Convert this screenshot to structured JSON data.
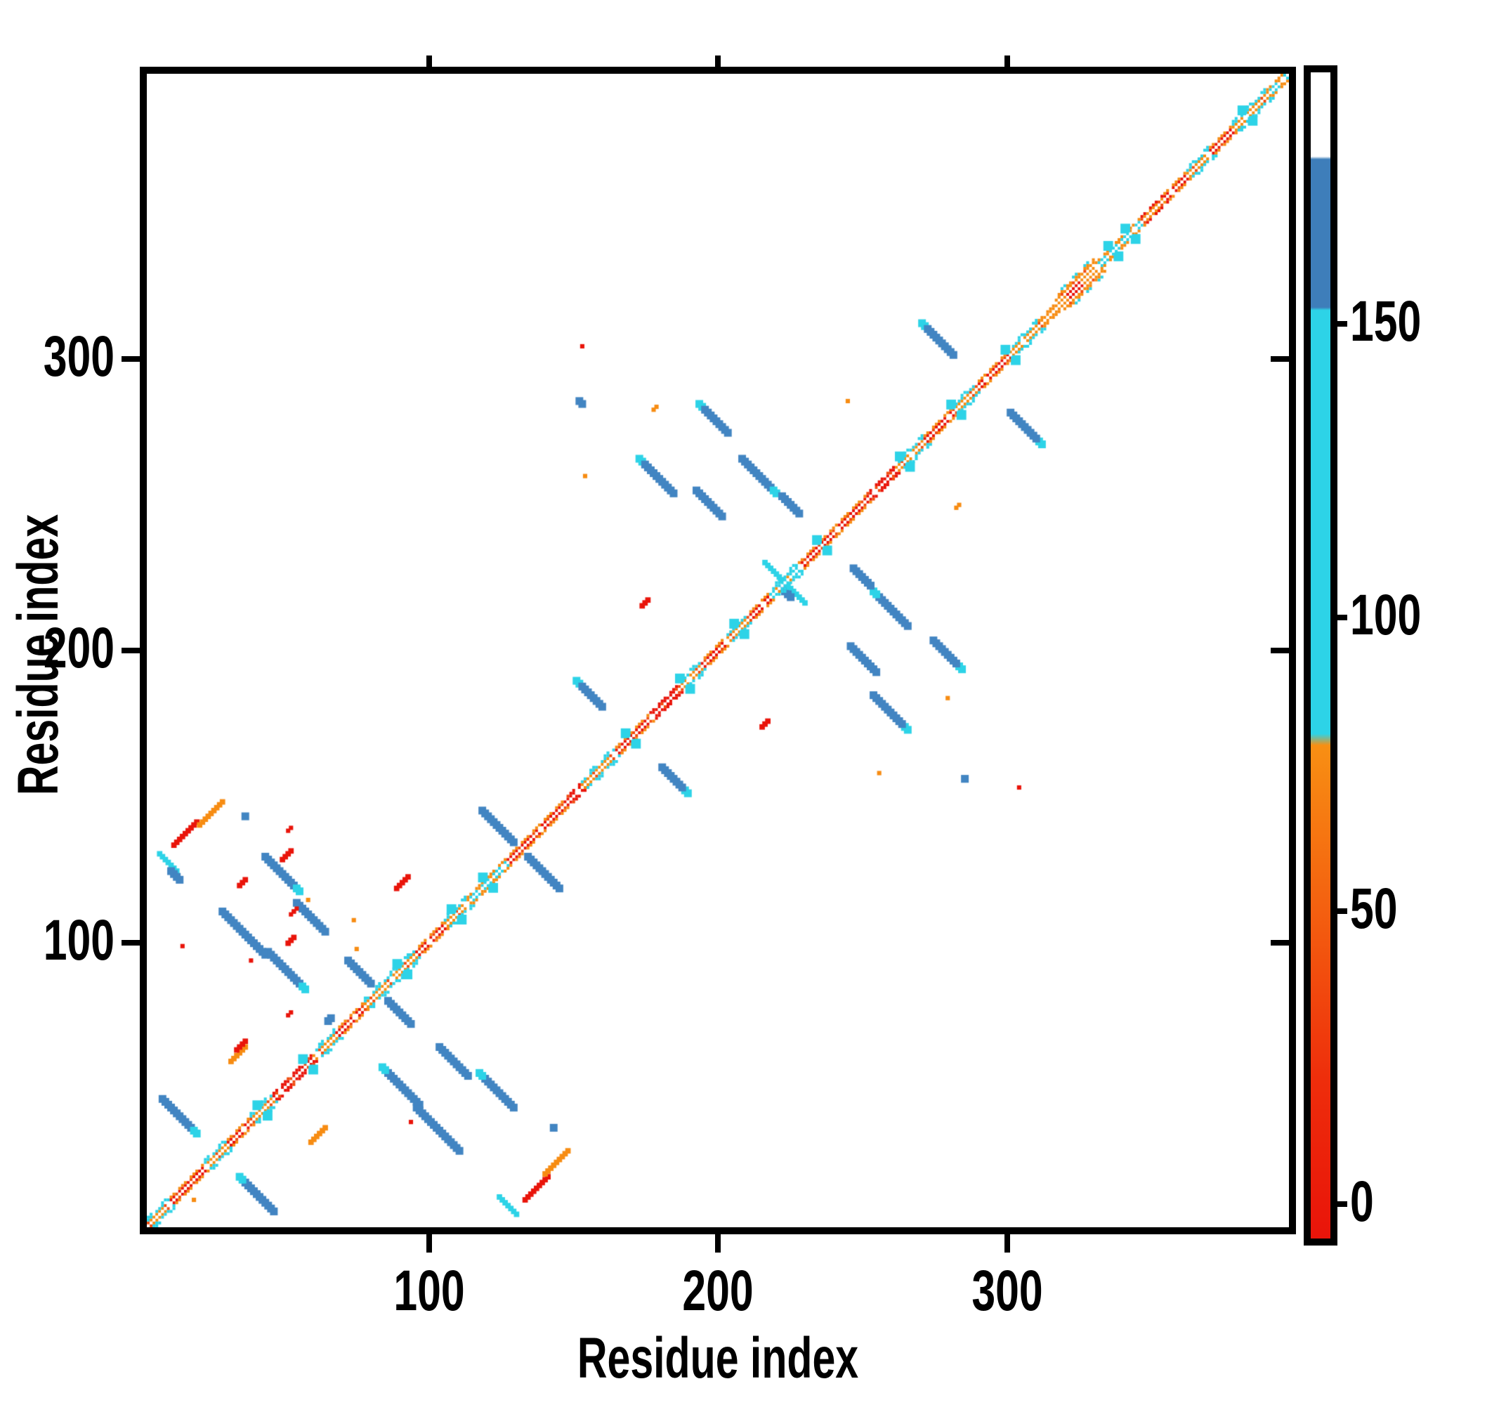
{
  "chart_data": {
    "type": "heatmap",
    "subtype": "protein-contact-map",
    "title": "",
    "xlabel": "Residue index",
    "ylabel": "Residue index",
    "x_ticks": [
      100,
      200,
      300
    ],
    "y_ticks": [
      100,
      200,
      300
    ],
    "xlim": [
      0,
      400
    ],
    "ylim": [
      0,
      400
    ],
    "grid": false,
    "background": "#ffffff",
    "palette": {
      "red": "#e9140a",
      "redOrange": "#f14b0e",
      "orange": "#f78c12",
      "cyan": "#2dd3e7",
      "blue": "#4285c2",
      "barBlue": "#3e7eba",
      "white": "#ffffff",
      "frame": "#000000"
    },
    "colorbar": {
      "ticks": [
        0,
        50,
        100,
        150
      ],
      "range": [
        -7,
        194
      ],
      "stops": [
        {
          "v": -7,
          "c": "#e9140a"
        },
        {
          "v": 20,
          "c": "#ee2d0b"
        },
        {
          "v": 45,
          "c": "#f3580f"
        },
        {
          "v": 78,
          "c": "#f88f13"
        },
        {
          "v": 80,
          "c": "#2dd3e7"
        },
        {
          "v": 153,
          "c": "#2dd3e7"
        },
        {
          "v": 153.5,
          "c": "#3e7eba"
        },
        {
          "v": 179,
          "c": "#3e7eba"
        },
        {
          "v": 179.5,
          "c": "#ffffff"
        },
        {
          "v": 194,
          "c": "#ffffff"
        }
      ]
    },
    "diagonal_segments": [
      [
        0,
        8,
        "orange",
        "cyan"
      ],
      [
        8,
        20,
        "red",
        "orange"
      ],
      [
        20,
        28,
        "orange",
        "cyan"
      ],
      [
        28,
        36,
        "red",
        "orange"
      ],
      [
        36,
        44,
        "orange",
        "cyan"
      ],
      [
        44,
        58,
        "red",
        "red"
      ],
      [
        58,
        66,
        "orange",
        "cyan"
      ],
      [
        66,
        76,
        "red",
        "orange"
      ],
      [
        76,
        86,
        "orange",
        "cyan"
      ],
      [
        86,
        94,
        "orange",
        "cyan"
      ],
      [
        94,
        104,
        "red",
        "orange"
      ],
      [
        104,
        112,
        "orange",
        "cyan"
      ],
      [
        112,
        126,
        "cyan",
        "orange"
      ],
      [
        126,
        146,
        "red",
        "orange"
      ],
      [
        146,
        152,
        "red",
        "red"
      ],
      [
        152,
        164,
        "orange",
        "cyan"
      ],
      [
        164,
        176,
        "red",
        "orange"
      ],
      [
        176,
        186,
        "red",
        "red"
      ],
      [
        186,
        194,
        "orange",
        "cyan"
      ],
      [
        194,
        202,
        "red",
        "orange"
      ],
      [
        202,
        210,
        "orange",
        "cyan"
      ],
      [
        210,
        218,
        "red",
        "orange"
      ],
      [
        218,
        228,
        "cyan",
        "cyan"
      ],
      [
        228,
        240,
        "red",
        "orange"
      ],
      [
        240,
        252,
        "red",
        "orange"
      ],
      [
        252,
        262,
        "red",
        "red"
      ],
      [
        262,
        272,
        "orange",
        "cyan"
      ],
      [
        272,
        282,
        "red",
        "orange"
      ],
      [
        282,
        290,
        "orange",
        "cyan"
      ],
      [
        290,
        302,
        "red",
        "orange"
      ],
      [
        302,
        312,
        "orange",
        "cyan"
      ],
      [
        312,
        318,
        "orange",
        "orange"
      ],
      [
        318,
        332,
        "wide",
        "wide"
      ],
      [
        332,
        348,
        "cyan",
        "orange"
      ],
      [
        348,
        356,
        "orange",
        "red"
      ],
      [
        356,
        364,
        "red",
        "orange"
      ],
      [
        364,
        372,
        "orange",
        "cyan"
      ],
      [
        372,
        380,
        "red",
        "orange"
      ],
      [
        380,
        392,
        "orange",
        "cyan"
      ],
      [
        392,
        400,
        "cyan",
        "orange"
      ]
    ],
    "diagonal_blobs": [
      40,
      56,
      89,
      108,
      119,
      169,
      188,
      207,
      236,
      265,
      283,
      302,
      338,
      344,
      385
    ],
    "features": [
      {
        "x": 5,
        "y": 44,
        "len": 13,
        "c": "blue",
        "dir": "anti",
        "tip": "end"
      },
      {
        "x": 26,
        "y": 109,
        "len": 16,
        "c": "blue",
        "dir": "anti"
      },
      {
        "x": 42,
        "y": 95,
        "len": 14,
        "c": "blue",
        "dir": "anti",
        "tip": "end"
      },
      {
        "x": 52,
        "y": 112,
        "len": 11,
        "c": "blue",
        "dir": "anti"
      },
      {
        "x": 41,
        "y": 128,
        "len": 13,
        "c": "blue",
        "dir": "anti",
        "tip": "end"
      },
      {
        "x": 70,
        "y": 92,
        "len": 9,
        "c": "blue",
        "dir": "anti"
      },
      {
        "x": 117,
        "y": 144,
        "len": 12,
        "c": "blue",
        "dir": "anti"
      },
      {
        "x": 150,
        "y": 189,
        "len": 10,
        "c": "blue",
        "dir": "anti",
        "tip": "start"
      },
      {
        "x": 172,
        "y": 266,
        "len": 13,
        "c": "blue",
        "dir": "anti",
        "tip": "start"
      },
      {
        "x": 192,
        "y": 255,
        "len": 10,
        "c": "blue",
        "dir": "anti"
      },
      {
        "x": 208,
        "y": 266,
        "len": 13,
        "c": "blue",
        "dir": "anti",
        "tip": "end"
      },
      {
        "x": 222,
        "y": 253,
        "len": 7,
        "c": "blue",
        "dir": "anti"
      },
      {
        "x": 193,
        "y": 285,
        "len": 11,
        "c": "blue",
        "dir": "anti",
        "tip": "start"
      },
      {
        "x": 271,
        "y": 313,
        "len": 12,
        "c": "blue",
        "dir": "anti",
        "tip": "start"
      },
      {
        "x": 4,
        "y": 129,
        "len": 7,
        "c": "cyan",
        "dir": "anti"
      },
      {
        "x": 8,
        "y": 123,
        "len": 4,
        "c": "blue",
        "dir": "anti",
        "mirror": false
      },
      {
        "x": 216,
        "y": 230,
        "len": 9,
        "c": "cyan",
        "dir": "anti"
      },
      {
        "x": 222,
        "y": 221,
        "len": 4,
        "c": "blue",
        "dir": "anti",
        "mirror": false
      },
      {
        "x": 9,
        "y": 132,
        "len": 9,
        "c": "red",
        "dir": "para"
      },
      {
        "x": 18,
        "y": 139,
        "len": 9,
        "c": "orange",
        "dir": "para"
      },
      {
        "x": 29,
        "y": 57,
        "len": 6,
        "c": "orange",
        "dir": "para"
      },
      {
        "x": 32,
        "y": 118,
        "len": 3,
        "c": "red",
        "dir": "para",
        "mirror": false
      },
      {
        "x": 47,
        "y": 127,
        "len": 4,
        "c": "red",
        "dir": "para",
        "mirror": false
      },
      {
        "x": 87,
        "y": 117,
        "len": 5,
        "c": "red",
        "dir": "para",
        "mirror": false
      },
      {
        "x": 173,
        "y": 215,
        "len": 3,
        "c": "red",
        "dir": "para"
      },
      {
        "x": 31,
        "y": 61,
        "len": 4,
        "c": "red",
        "dir": "para",
        "mirror": false
      },
      {
        "x": 49,
        "y": 73,
        "len": 2,
        "c": "red",
        "dir": "para",
        "mirror": false
      },
      {
        "x": 49,
        "y": 98,
        "len": 3,
        "c": "red",
        "dir": "para",
        "mirror": false
      },
      {
        "x": 50,
        "y": 108,
        "len": 2,
        "c": "red",
        "dir": "para",
        "mirror": false
      },
      {
        "x": 49,
        "y": 137,
        "len": 2,
        "c": "red",
        "dir": "para",
        "mirror": false
      },
      {
        "x": 152,
        "y": 305,
        "len": 1,
        "c": "red",
        "dir": "para"
      },
      {
        "x": 56,
        "y": 113,
        "len": 1,
        "c": "orange",
        "dir": "para",
        "mirror": false
      },
      {
        "x": 73,
        "y": 96,
        "len": 1,
        "c": "orange",
        "dir": "para",
        "mirror": false
      },
      {
        "x": 12,
        "y": 97,
        "len": 1,
        "c": "red",
        "dir": "para",
        "mirror": false
      },
      {
        "x": 72,
        "y": 106,
        "len": 1,
        "c": "orange",
        "dir": "para",
        "mirror": false
      },
      {
        "x": 36,
        "y": 92,
        "len": 1,
        "c": "red",
        "dir": "para"
      },
      {
        "x": 34,
        "y": 142,
        "len": 1,
        "c": "blue",
        "dir": "para"
      },
      {
        "x": 63,
        "y": 71,
        "len": 2,
        "c": "blue",
        "dir": "para",
        "mirror": false
      },
      {
        "x": 151,
        "y": 286,
        "len": 2,
        "c": "blue",
        "dir": "anti",
        "mirror": false
      },
      {
        "x": 177,
        "y": 283,
        "len": 2,
        "c": "orange",
        "dir": "para",
        "mirror": false
      },
      {
        "x": 153,
        "y": 260,
        "len": 1,
        "c": "orange",
        "dir": "para",
        "mirror": false
      },
      {
        "x": 283,
        "y": 249,
        "len": 2,
        "c": "orange",
        "dir": "para",
        "mirror": false
      },
      {
        "x": 280,
        "y": 183,
        "len": 1,
        "c": "orange",
        "dir": "para",
        "mirror": false
      },
      {
        "x": 256,
        "y": 157,
        "len": 1,
        "c": "orange",
        "dir": "para",
        "mirror": false
      },
      {
        "x": 245,
        "y": 286,
        "len": 1,
        "c": "orange",
        "dir": "para",
        "mirror": false
      },
      {
        "x": 286,
        "y": 155,
        "len": 1,
        "c": "blue",
        "dir": "para",
        "mirror": false
      },
      {
        "x": 16,
        "y": 9,
        "len": 1,
        "c": "orange",
        "dir": "para",
        "mirror": false
      },
      {
        "x": 51,
        "y": 109,
        "len": 2,
        "c": "red",
        "dir": "para",
        "mirror": false
      }
    ]
  }
}
